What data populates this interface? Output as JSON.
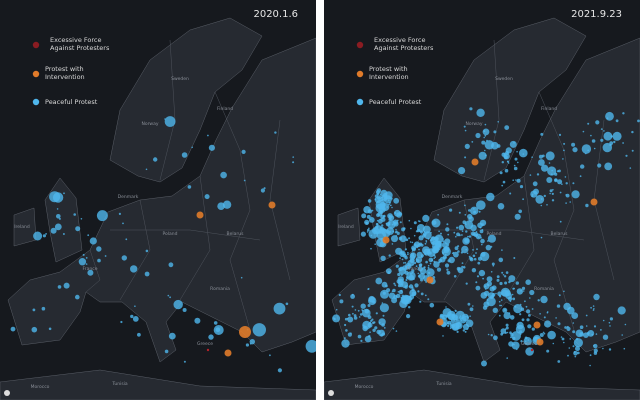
{
  "panels": [
    {
      "date": "2020.1.6",
      "legend": [
        "Excessive Force Against Protesters",
        "Protest with Intervention",
        "Peaceful Protest"
      ],
      "places": [
        "Norway",
        "Sweden",
        "Finland",
        "Ireland",
        "Denmark",
        "Poland",
        "Belarus",
        "France",
        "Romania",
        "Greece",
        "Tunisia",
        "Morocco"
      ]
    },
    {
      "date": "2021.9.23",
      "legend": [
        "Excessive Force Against Protesters",
        "Protest with Intervention",
        "Peaceful Protest"
      ],
      "places": [
        "Norway",
        "Sweden",
        "Finland",
        "Ireland",
        "Denmark",
        "Poland",
        "Belarus",
        "France",
        "Romania",
        "Greece",
        "Tunisia",
        "Morocco"
      ]
    }
  ]
}
